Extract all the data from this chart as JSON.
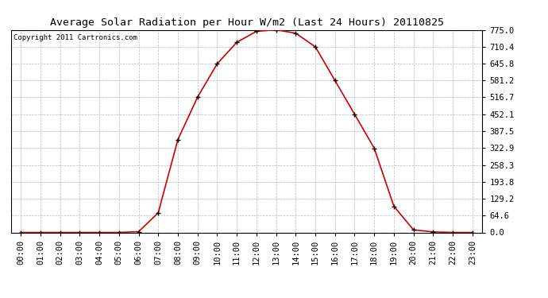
{
  "title": "Average Solar Radiation per Hour W/m2 (Last 24 Hours) 20110825",
  "copyright_text": "Copyright 2011 Cartronics.com",
  "hours": [
    "00:00",
    "01:00",
    "02:00",
    "03:00",
    "04:00",
    "05:00",
    "06:00",
    "07:00",
    "08:00",
    "09:00",
    "10:00",
    "11:00",
    "12:00",
    "13:00",
    "14:00",
    "15:00",
    "16:00",
    "17:00",
    "18:00",
    "19:00",
    "20:00",
    "21:00",
    "22:00",
    "23:00"
  ],
  "values": [
    0.0,
    0.0,
    0.0,
    0.0,
    0.0,
    0.0,
    3.0,
    75.0,
    355.0,
    517.0,
    645.0,
    727.0,
    769.0,
    775.0,
    762.0,
    710.0,
    581.0,
    452.0,
    322.0,
    100.0,
    10.0,
    2.0,
    0.0,
    0.0
  ],
  "line_color": "#cc0000",
  "marker_color": "#000000",
  "bg_color": "#ffffff",
  "grid_color": "#bbbbbb",
  "yticks": [
    0.0,
    64.6,
    129.2,
    193.8,
    258.3,
    322.9,
    387.5,
    452.1,
    516.7,
    581.2,
    645.8,
    710.4,
    775.0
  ],
  "ylim": [
    0.0,
    775.0
  ],
  "title_fontsize": 9.5,
  "tick_fontsize": 7.5,
  "copyright_fontsize": 6.5
}
